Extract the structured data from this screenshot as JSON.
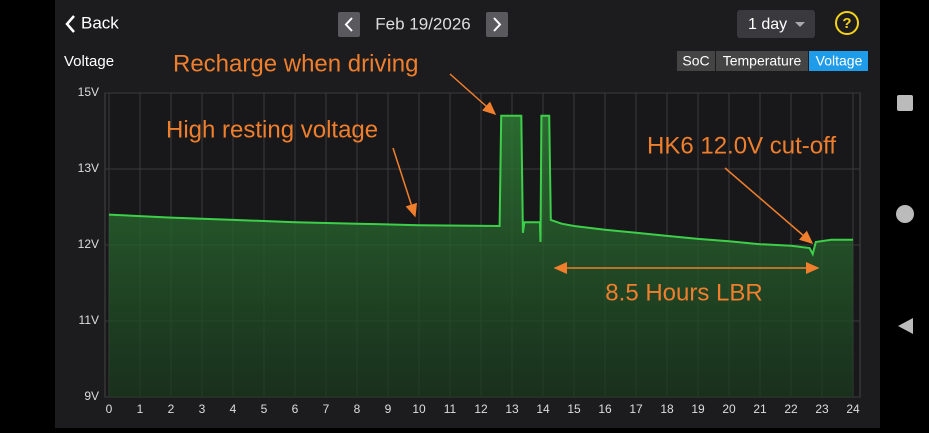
{
  "header": {
    "back": "Back",
    "date": "Feb 19/2026",
    "range": "1 day",
    "help": "?"
  },
  "tabs": [
    "SoC",
    "Temperature",
    "Voltage"
  ],
  "chart_data": {
    "type": "line",
    "title": "Voltage",
    "x": [
      0,
      2,
      4,
      6,
      8,
      10,
      12.6,
      12.65,
      13.3,
      13.35,
      13.4,
      13.9,
      13.92,
      13.95,
      14.2,
      14.25,
      14.6,
      15,
      16,
      17,
      18,
      19,
      20,
      21,
      22,
      22.6,
      22.7,
      22.8,
      23.3,
      24
    ],
    "series": [
      {
        "name": "Voltage",
        "color": "#3ecf4a",
        "values": [
          12.4,
          12.36,
          12.33,
          12.3,
          12.28,
          12.26,
          12.25,
          14.4,
          14.4,
          12.16,
          12.3,
          12.3,
          12.04,
          14.4,
          14.4,
          12.33,
          12.28,
          12.25,
          12.2,
          12.16,
          12.12,
          12.08,
          12.05,
          12.01,
          11.99,
          11.96,
          11.88,
          12.04,
          12.07,
          12.07
        ]
      }
    ],
    "xlim": [
      0,
      24
    ],
    "xticks": [
      0,
      1,
      2,
      3,
      4,
      5,
      6,
      7,
      8,
      9,
      10,
      11,
      12,
      13,
      14,
      15,
      16,
      17,
      18,
      19,
      20,
      21,
      22,
      23,
      24
    ],
    "ylim": [
      9,
      15
    ],
    "yticks": [
      {
        "value": 9,
        "label": "9V"
      },
      {
        "value": 11,
        "label": "11V"
      },
      {
        "value": 12,
        "label": "12V"
      },
      {
        "value": 13,
        "label": "13V"
      },
      {
        "value": 15,
        "label": "15V"
      }
    ],
    "grid": true,
    "annotations": [
      "Recharge when driving",
      "High resting voltage",
      "HK6 12.0V cut-off",
      "8.5 Hours LBR"
    ]
  }
}
